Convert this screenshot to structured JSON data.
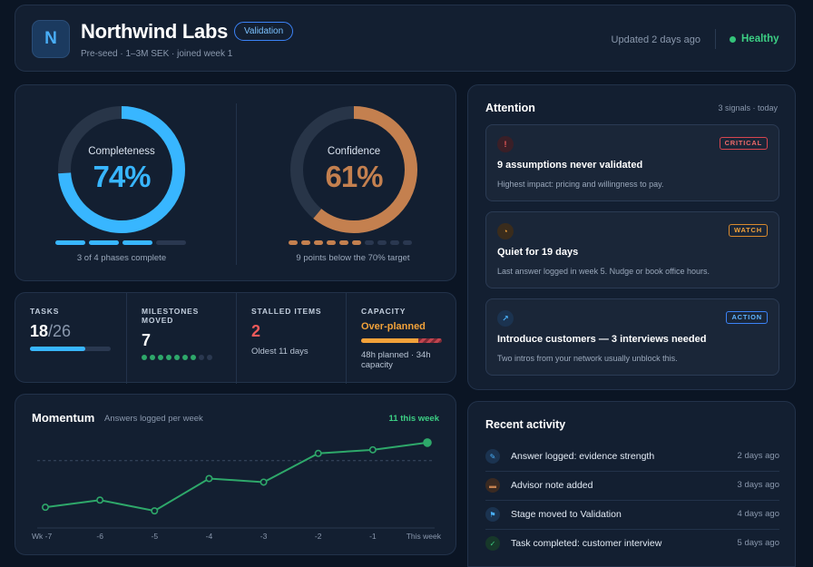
{
  "header": {
    "logo_letter": "N",
    "title": "Northwind Labs",
    "stage_badge": "Validation",
    "subtitle": "Pre-seed · 1–3M SEK · joined week 1",
    "updated": "Updated 2 days ago",
    "status": "Healthy"
  },
  "gauges": {
    "completeness": {
      "label": "Completeness",
      "value_text": "74%",
      "percent": 74,
      "color": "#38b6ff",
      "segments_filled": 3,
      "segments_total": 4,
      "caption": "3 of 4 phases complete"
    },
    "confidence": {
      "label": "Confidence",
      "value_text": "61%",
      "percent": 61,
      "color": "#c4804f",
      "segments_filled": 6,
      "segments_total": 10,
      "caption": "9 points below the 70% target"
    }
  },
  "stats": {
    "tasks": {
      "label": "TASKS",
      "done": "18",
      "total": "/26",
      "fraction": 0.69
    },
    "milestones": {
      "label": "MILESTONES MOVED",
      "value": "7",
      "dots_filled": 7,
      "dots_total": 9
    },
    "stalled": {
      "label": "STALLED ITEMS",
      "value": "2",
      "note": "Oldest 11 days"
    },
    "capacity": {
      "label": "CAPACITY",
      "status": "Over-planned",
      "note": "48h planned · 34h capacity",
      "fraction": 0.71
    }
  },
  "momentum": {
    "title": "Momentum",
    "subtitle": "Answers logged per week",
    "right_note": "11 this week"
  },
  "chart_data": {
    "type": "line",
    "title": "Momentum",
    "subtitle": "Answers logged per week",
    "categories": [
      "Wk -7",
      "-6",
      "-5",
      "-4",
      "-3",
      "-2",
      "-1",
      "This week"
    ],
    "values": [
      2,
      3,
      1.5,
      6,
      5.5,
      9.5,
      10,
      11
    ],
    "ylim": [
      0,
      12
    ],
    "target": 8.5,
    "color": "#2ea86a"
  },
  "attention": {
    "title": "Attention",
    "meta": "3 signals · today",
    "alerts": [
      {
        "icon": "!",
        "tag": "CRITICAL",
        "title": "9 assumptions never validated",
        "desc": "Highest impact: pricing and willingness to pay."
      },
      {
        "icon": "◔",
        "tag": "WATCH",
        "title": "Quiet for 19 days",
        "desc": "Last answer logged in week 5. Nudge or book office hours."
      },
      {
        "icon": "↗",
        "tag": "ACTION",
        "title": "Introduce customers — 3 interviews needed",
        "desc": "Two intros from your network usually unblock this."
      }
    ]
  },
  "recent": {
    "title": "Recent activity",
    "items": [
      {
        "icon": "✎",
        "text": "Answer logged: evidence strength",
        "time": "2 days ago"
      },
      {
        "icon": "▬",
        "text": "Advisor note added",
        "time": "3 days ago"
      },
      {
        "icon": "⚑",
        "text": "Stage moved to Validation",
        "time": "4 days ago"
      },
      {
        "icon": "✓",
        "text": "Task completed: customer interview",
        "time": "5 days ago"
      }
    ]
  }
}
